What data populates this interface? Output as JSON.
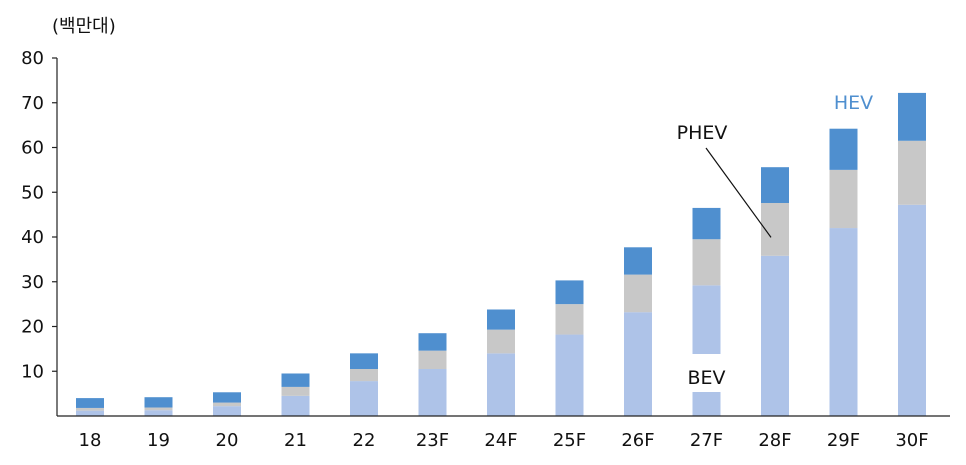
{
  "chart_data": {
    "type": "bar",
    "stacked": true,
    "unit_label": "(백만대)",
    "categories": [
      "18",
      "19",
      "20",
      "21",
      "22",
      "23F",
      "24F",
      "25F",
      "26F",
      "27F",
      "28F",
      "29F",
      "30F"
    ],
    "series": [
      {
        "name": "BEV",
        "color": "#aec3e8",
        "values": [
          1.2,
          1.3,
          2.2,
          4.5,
          7.8,
          10.5,
          14.0,
          18.2,
          23.2,
          29.2,
          35.8,
          42.0,
          47.2
        ]
      },
      {
        "name": "PHEV",
        "color": "#c8c8c8",
        "values": [
          0.6,
          0.6,
          0.8,
          2.0,
          2.7,
          4.1,
          5.3,
          6.8,
          8.4,
          10.3,
          11.8,
          13.0,
          14.3
        ]
      },
      {
        "name": "HEV",
        "color": "#4f8fcf",
        "values": [
          2.2,
          2.3,
          2.3,
          3.0,
          3.5,
          3.9,
          4.5,
          5.3,
          6.1,
          7.0,
          8.0,
          9.2,
          10.7
        ]
      }
    ],
    "ylim": [
      0,
      80
    ],
    "yticks": [
      10,
      20,
      30,
      40,
      50,
      60,
      70,
      80
    ],
    "grid": false,
    "legend": "inline labels on chart"
  }
}
